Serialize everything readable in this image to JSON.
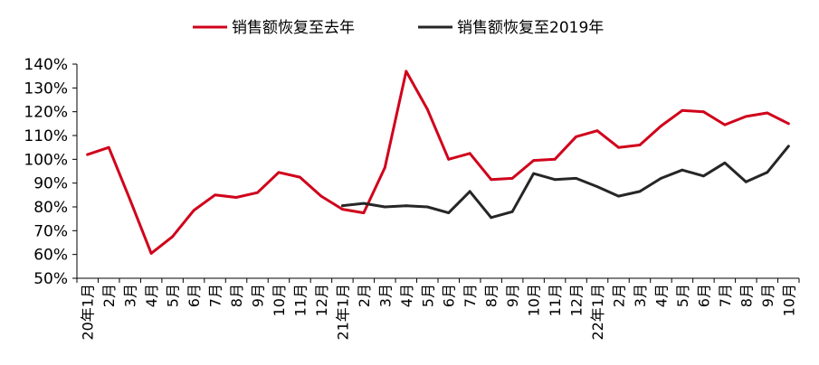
{
  "chart_data": {
    "type": "line",
    "title": "",
    "xlabel": "",
    "ylabel": "",
    "ylim": [
      0.5,
      1.4
    ],
    "yticks": [
      "50%",
      "60%",
      "70%",
      "80%",
      "90%",
      "100%",
      "110%",
      "120%",
      "130%",
      "140%"
    ],
    "legend_position": "top",
    "categories": [
      "20年1月",
      "2月",
      "3月",
      "4月",
      "5月",
      "6月",
      "7月",
      "8月",
      "9月",
      "10月",
      "11月",
      "12月",
      "21年1月",
      "2月",
      "3月",
      "4月",
      "5月",
      "6月",
      "7月",
      "8月",
      "9月",
      "10月",
      "11月",
      "12月",
      "22年1月",
      "2月",
      "3月",
      "4月",
      "5月",
      "6月",
      "7月",
      "8月",
      "9月",
      "10月"
    ],
    "series": [
      {
        "name": "销售额恢复至去年",
        "color": "#d0021b",
        "values": [
          1.02,
          1.05,
          0.83,
          0.605,
          0.675,
          0.785,
          0.85,
          0.84,
          0.86,
          0.945,
          0.925,
          0.845,
          0.79,
          0.775,
          0.965,
          1.37,
          1.21,
          1.0,
          1.025,
          0.915,
          0.92,
          0.995,
          1.0,
          1.095,
          1.12,
          1.05,
          1.06,
          1.14,
          1.205,
          1.2,
          1.145,
          1.18,
          1.195,
          1.15
        ]
      },
      {
        "name": "销售额恢复至2019年",
        "color": "#262626",
        "values": [
          null,
          null,
          null,
          null,
          null,
          null,
          null,
          null,
          null,
          null,
          null,
          null,
          0.805,
          0.815,
          0.8,
          0.805,
          0.8,
          0.775,
          0.865,
          0.755,
          0.78,
          0.94,
          0.915,
          0.92,
          0.885,
          0.845,
          0.865,
          0.92,
          0.955,
          0.93,
          0.985,
          0.905,
          0.945,
          1.055
        ]
      }
    ]
  }
}
